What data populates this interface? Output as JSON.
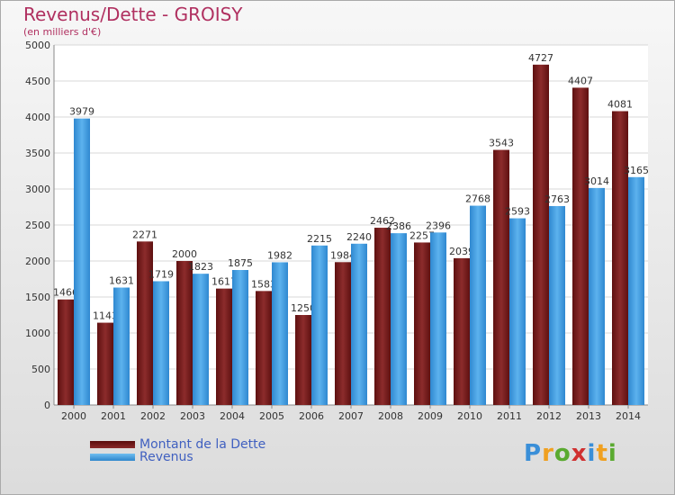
{
  "header": {
    "title": "Revenus/Dette - GROISY",
    "subtitle": "(en milliers d'€)"
  },
  "legend": {
    "debt_label": "Montant de la Dette",
    "revenue_label": "Revenus"
  },
  "brand": {
    "text": "Proxiti"
  },
  "colors": {
    "debt": "#7a1c1c",
    "revenue": "#3d9be0",
    "title": "#b03060"
  },
  "chart_data": {
    "type": "bar",
    "title": "Revenus/Dette - GROISY",
    "subtitle": "(en milliers d'€)",
    "xlabel": "",
    "ylabel": "",
    "ylim": [
      0,
      5000
    ],
    "yticks": [
      0,
      500,
      1000,
      1500,
      2000,
      2500,
      3000,
      3500,
      4000,
      4500,
      5000
    ],
    "grid": true,
    "legend_position": "bottom-left",
    "categories": [
      "2000",
      "2001",
      "2002",
      "2003",
      "2004",
      "2005",
      "2006",
      "2007",
      "2008",
      "2009",
      "2010",
      "2011",
      "2012",
      "2013",
      "2014"
    ],
    "series": [
      {
        "name": "Montant de la Dette",
        "values": [
          1466,
          1143,
          2271,
          2000,
          1617,
          1583,
          1250,
          1984,
          2462,
          2257,
          2039,
          3543,
          4727,
          4407,
          4081
        ]
      },
      {
        "name": "Revenus",
        "values": [
          3979,
          1631,
          1719,
          1823,
          1875,
          1982,
          2215,
          2240,
          2386,
          2396,
          2768,
          2593,
          2763,
          3014,
          3165
        ]
      }
    ]
  }
}
